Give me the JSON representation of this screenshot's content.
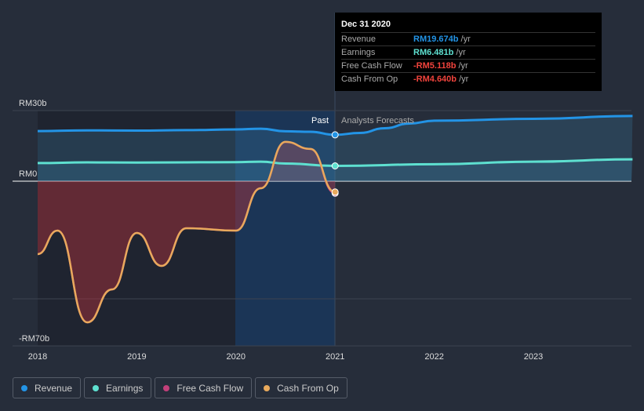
{
  "tooltip": {
    "date": "Dec 31 2020",
    "rows": [
      {
        "label": "Revenue",
        "value": "RM19.674b",
        "unit": "/yr",
        "color": "#2394e6"
      },
      {
        "label": "Earnings",
        "value": "RM6.481b",
        "unit": "/yr",
        "color": "#5ee0d0"
      },
      {
        "label": "Free Cash Flow",
        "value": "-RM5.118b",
        "unit": "/yr",
        "color": "#f0433c"
      },
      {
        "label": "Cash From Op",
        "value": "-RM4.640b",
        "unit": "/yr",
        "color": "#f0433c"
      }
    ]
  },
  "labels": {
    "past": "Past",
    "forecast": "Analysts Forecasts"
  },
  "chart_data": {
    "type": "line",
    "ylim": [
      -70,
      30
    ],
    "xlim": [
      2018,
      2024
    ],
    "yticks": [
      {
        "v": 30,
        "label": "RM30b"
      },
      {
        "v": 0,
        "label": "RM0"
      },
      {
        "v": -70,
        "label": "-RM70b"
      }
    ],
    "xticks": [
      "2018",
      "2019",
      "2020",
      "2021",
      "2022",
      "2023"
    ],
    "series": [
      {
        "name": "Revenue",
        "color": "#2394e6",
        "x": [
          2018,
          2018.5,
          2019,
          2019.5,
          2020,
          2020.25,
          2020.5,
          2020.75,
          2021,
          2021.25,
          2021.5,
          2021.75,
          2022,
          2023,
          2024
        ],
        "y": [
          21.3,
          21.6,
          21.5,
          21.7,
          22,
          22.3,
          21.2,
          21,
          19.7,
          20.5,
          22.5,
          24.5,
          25.7,
          26.5,
          27.7
        ]
      },
      {
        "name": "Earnings",
        "color": "#5ee0d0",
        "x": [
          2018,
          2018.5,
          2019,
          2019.5,
          2020,
          2020.25,
          2020.5,
          2021,
          2022,
          2023,
          2024
        ],
        "y": [
          7.7,
          8,
          7.9,
          8,
          8.1,
          8.3,
          7.5,
          6.5,
          7.2,
          8.3,
          9.3
        ]
      },
      {
        "name": "Free Cash Flow",
        "color": "#c2407a",
        "x": [
          2018,
          2018.2,
          2018.5,
          2018.75,
          2019,
          2019.25,
          2019.5,
          2020,
          2020.25,
          2020.5,
          2020.75,
          2021
        ],
        "y": [
          -31,
          -21,
          -60,
          -46,
          -22,
          -36,
          -20,
          -21,
          -3,
          16.7,
          13.7,
          -5.1
        ]
      },
      {
        "name": "Cash From Op",
        "color": "#e8a95c",
        "x": [
          2018,
          2018.2,
          2018.5,
          2018.75,
          2019,
          2019.25,
          2019.5,
          2020,
          2020.25,
          2020.5,
          2020.75,
          2021
        ],
        "y": [
          -31,
          -21,
          -60,
          -46,
          -22,
          -36,
          -20,
          -21,
          -3,
          16.7,
          13.7,
          -4.6
        ]
      }
    ]
  },
  "legend": [
    "Revenue",
    "Earnings",
    "Free Cash Flow",
    "Cash From Op"
  ]
}
